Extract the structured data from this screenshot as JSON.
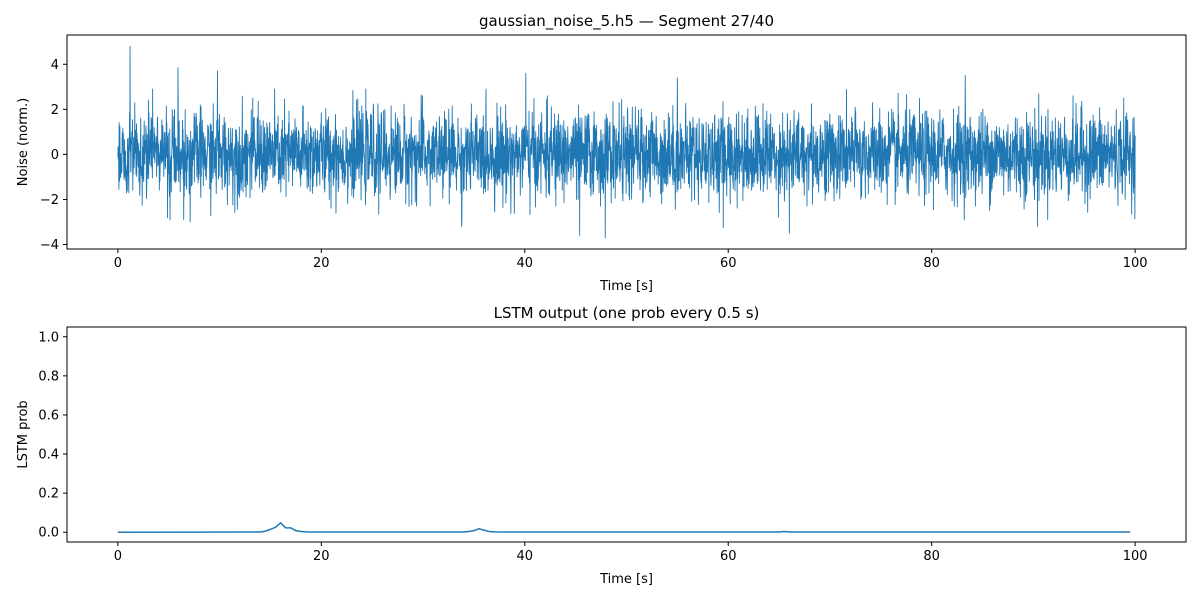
{
  "figure": {
    "background": "#ffffff",
    "line_color": "#1f77b4"
  },
  "chart_data": [
    {
      "type": "line",
      "title": "gaussian_noise_5.h5 — Segment 27/40",
      "xlabel": "Time [s]",
      "ylabel": "Noise (norm.)",
      "xlim": [
        -5,
        105
      ],
      "ylim": [
        -4.2,
        5.3
      ],
      "xticks": [
        0,
        20,
        40,
        60,
        80,
        100
      ],
      "xtick_labels": [
        "0",
        "20",
        "40",
        "60",
        "80",
        "100"
      ],
      "yticks": [
        -4,
        -2,
        0,
        2,
        4
      ],
      "ytick_labels": [
        "−4",
        "−2",
        "0",
        "2",
        "4"
      ],
      "series": [
        {
          "name": "noise",
          "description": "Dense Gaussian noise trace, normalized, about 4096 samples over 0–100 s; typical spread ±2, extremes shown as sparse spikes",
          "x_range": [
            0,
            100
          ],
          "sample_count": 4096,
          "std": 0.95,
          "spikes": [
            {
              "x": 1.2,
              "y": 4.8
            },
            {
              "x": 5.9,
              "y": 3.85
            },
            {
              "x": 9.8,
              "y": 3.7
            },
            {
              "x": 83.3,
              "y": 3.5
            },
            {
              "x": 40.1,
              "y": 3.6
            },
            {
              "x": 55.0,
              "y": 3.4
            },
            {
              "x": 7.1,
              "y": -3.0
            },
            {
              "x": 33.8,
              "y": -3.2
            },
            {
              "x": 45.4,
              "y": -3.6
            },
            {
              "x": 47.9,
              "y": -3.7
            },
            {
              "x": 59.5,
              "y": -3.25
            },
            {
              "x": 66.0,
              "y": -3.5
            },
            {
              "x": 90.4,
              "y": -3.2
            }
          ]
        }
      ]
    },
    {
      "type": "line",
      "title": "LSTM output (one prob every 0.5 s)",
      "xlabel": "Time [s]",
      "ylabel": "LSTM prob",
      "xlim": [
        -5,
        105
      ],
      "ylim": [
        -0.05,
        1.05
      ],
      "xticks": [
        0,
        20,
        40,
        60,
        80,
        100
      ],
      "xtick_labels": [
        "0",
        "20",
        "40",
        "60",
        "80",
        "100"
      ],
      "yticks": [
        0,
        0.2,
        0.4,
        0.6,
        0.8,
        1.0
      ],
      "ytick_labels": [
        "0.0",
        "0.2",
        "0.4",
        "0.6",
        "0.8",
        "1.0"
      ],
      "series": [
        {
          "name": "lstm_prob",
          "x": [
            0,
            14.0,
            14.5,
            15.0,
            15.5,
            16.0,
            16.5,
            17.0,
            17.5,
            18.0,
            18.5,
            19.0,
            20.0,
            34.0,
            34.5,
            35.0,
            35.5,
            36.0,
            36.5,
            37.0,
            38.0,
            65.0,
            65.5,
            66.0,
            99.5
          ],
          "y": [
            0,
            0.001,
            0.005,
            0.015,
            0.025,
            0.048,
            0.022,
            0.022,
            0.008,
            0.004,
            0.002,
            0.001,
            0.001,
            0.001,
            0.004,
            0.008,
            0.018,
            0.01,
            0.004,
            0.002,
            0.001,
            0.001,
            0.004,
            0.001,
            0.001
          ]
        }
      ]
    }
  ]
}
